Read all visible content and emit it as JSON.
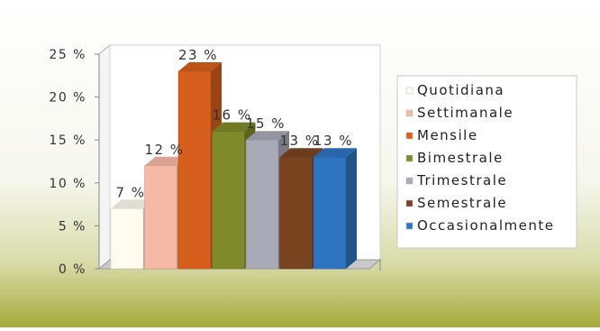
{
  "chart_data": {
    "type": "bar",
    "title": "",
    "xlabel": "",
    "ylabel": "",
    "ylim": [
      0,
      25
    ],
    "y_ticks": [
      "0 %",
      "5 %",
      "10 %",
      "15 %",
      "20 %",
      "25 %"
    ],
    "y_tick_values": [
      0,
      5,
      10,
      15,
      20,
      25
    ],
    "categories": [
      "Quotidiana",
      "Settimanale",
      "Mensile",
      "Bimestrale",
      "Trimestrale",
      "Semestrale",
      "Occasionalmente"
    ],
    "values": [
      7,
      12,
      23,
      16,
      15,
      13,
      13
    ],
    "data_labels": [
      "7 %",
      "12 %",
      "23 %",
      "16 %",
      "15 %",
      "13 %",
      "13 %"
    ],
    "colors": [
      "#fffbef",
      "#f5b9a6",
      "#d65f1d",
      "#7f8b2a",
      "#a9a9b8",
      "#7a4421",
      "#2f74c1"
    ],
    "legend_position": "right",
    "grid": false,
    "three_d": true
  }
}
